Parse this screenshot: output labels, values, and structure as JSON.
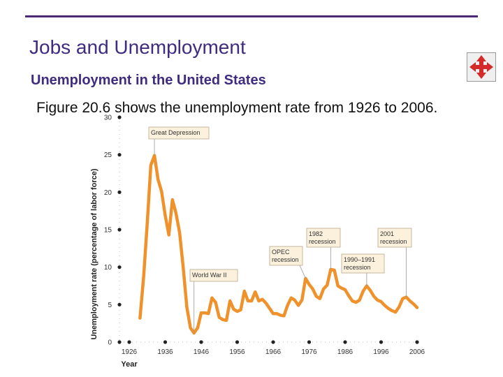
{
  "slide": {
    "title": "Jobs and Unemployment",
    "subtitle": "Unemployment in the United States",
    "body": "Figure 20.6 shows the unemployment rate from 1926 to 2006.",
    "nav_icon": "four-way-arrow-icon"
  },
  "colors": {
    "rule": "#4b2a73",
    "title": "#3f2b80",
    "line": "#f0922b",
    "annotation_fill": "#fbf1dc",
    "annotation_border": "#b8a98c",
    "nav_arrow": "#d42a2a"
  },
  "chart_data": {
    "type": "line",
    "title": "",
    "xlabel": "Year",
    "ylabel": "Unemployment rate (percentage of labor force)",
    "xlim": [
      1926,
      2006
    ],
    "ylim": [
      0,
      30
    ],
    "xticks": [
      1926,
      1936,
      1946,
      1956,
      1966,
      1976,
      1986,
      1996,
      2006
    ],
    "yticks": [
      0,
      5,
      10,
      15,
      20,
      25,
      30
    ],
    "grid": false,
    "series": [
      {
        "x": [
          1929,
          1930,
          1931,
          1932,
          1933,
          1934,
          1935,
          1936,
          1937,
          1938,
          1939,
          1940,
          1941,
          1942,
          1943,
          1944,
          1945,
          1946,
          1947,
          1948,
          1949,
          1950,
          1951,
          1952,
          1953,
          1954,
          1955,
          1956,
          1957,
          1958,
          1959,
          1960,
          1961,
          1962,
          1963,
          1964,
          1965,
          1966,
          1967,
          1968,
          1969,
          1970,
          1971,
          1972,
          1973,
          1974,
          1975,
          1976,
          1977,
          1978,
          1979,
          1980,
          1981,
          1982,
          1983,
          1984,
          1985,
          1986,
          1987,
          1988,
          1989,
          1990,
          1991,
          1992,
          1993,
          1994,
          1995,
          1996,
          1997,
          1998,
          1999,
          2000,
          2001,
          2002,
          2003,
          2004,
          2005,
          2006
        ],
        "y": [
          3.2,
          8.7,
          15.9,
          23.6,
          24.9,
          21.7,
          20.1,
          16.9,
          14.3,
          19.0,
          17.2,
          14.6,
          9.9,
          4.7,
          1.9,
          1.2,
          1.9,
          3.9,
          3.9,
          3.8,
          5.9,
          5.3,
          3.3,
          3.0,
          2.9,
          5.5,
          4.4,
          4.1,
          4.3,
          6.8,
          5.5,
          5.5,
          6.7,
          5.5,
          5.7,
          5.2,
          4.5,
          3.8,
          3.8,
          3.6,
          3.5,
          4.9,
          5.9,
          5.6,
          4.9,
          5.6,
          8.5,
          7.7,
          7.1,
          6.1,
          5.8,
          7.1,
          7.6,
          9.7,
          9.6,
          7.5,
          7.2,
          7.0,
          6.2,
          5.5,
          5.3,
          5.6,
          6.8,
          7.5,
          6.9,
          6.1,
          5.6,
          5.4,
          4.9,
          4.5,
          4.2,
          4.0,
          4.7,
          5.8,
          6.0,
          5.5,
          5.1,
          4.6
        ]
      }
    ],
    "annotations": [
      {
        "text": "Great Depression",
        "x": 1933,
        "y": 24.9
      },
      {
        "text": "World War II",
        "x": 1944,
        "y": 1.2
      },
      {
        "text": "OPEC recession",
        "x": 1975,
        "y": 8.5
      },
      {
        "text": "1982 recession",
        "x": 1982,
        "y": 9.7
      },
      {
        "text": "1990–1991 recession",
        "x": 1992,
        "y": 7.5
      },
      {
        "text": "2001 recession",
        "x": 2003,
        "y": 6.0
      }
    ]
  }
}
